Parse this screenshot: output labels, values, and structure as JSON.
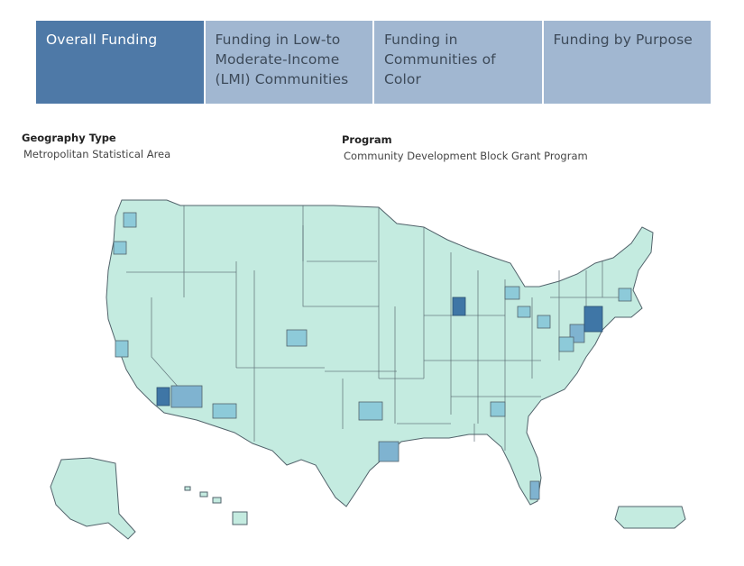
{
  "tabs": [
    {
      "label": "Overall Funding",
      "active": true
    },
    {
      "label": "Funding in Low-to Moderate-Income (LMI) Communities",
      "active": false
    },
    {
      "label": "Funding in Communities of Color",
      "active": false
    },
    {
      "label": "Funding by Purpose",
      "active": false
    }
  ],
  "filters": {
    "geography": {
      "label": "Geography Type",
      "value": "Metropolitan Statistical Area"
    },
    "program": {
      "label": "Program",
      "value": "Community Development Block Grant Program"
    }
  },
  "map": {
    "colors": {
      "base": "#c4ebe0",
      "border": "#52636b",
      "mid": "#8dcad9",
      "high": "#7fb3d0",
      "top": "#3f76a6"
    }
  }
}
